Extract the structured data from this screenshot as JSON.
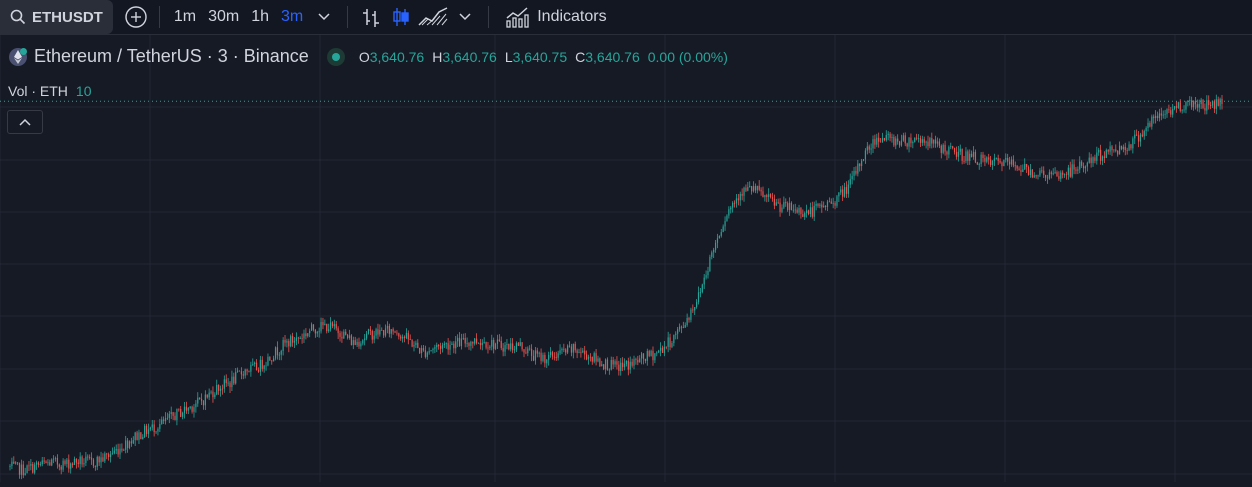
{
  "toolbar": {
    "symbol": "ETHUSDT",
    "intervals": [
      "1m",
      "30m",
      "1h",
      "3m"
    ],
    "active_interval": "3m",
    "indicators_label": "Indicators"
  },
  "legend": {
    "title": "Ethereum / TetherUS · 3 · Binance",
    "open_label": "O",
    "open": "3,640.76",
    "high_label": "H",
    "high": "3,640.76",
    "low_label": "L",
    "low": "3,640.75",
    "close_label": "C",
    "close": "3,640.76",
    "change": "0.00 (0.00%)"
  },
  "volume": {
    "label": "Vol · ETH",
    "value": "10"
  },
  "colors": {
    "up": "#26a69a",
    "down": "#ef5350",
    "accent": "#2962ff",
    "background": "#161a25",
    "grid": "#232734"
  },
  "chart_data": {
    "type": "candlestick",
    "x_label": "",
    "y_label": "",
    "price_line": 3640.76,
    "path_close": [
      3395,
      3393,
      3396,
      3398,
      3397,
      3399,
      3398,
      3402,
      3408,
      3415,
      3420,
      3424,
      3430,
      3435,
      3440,
      3448,
      3452,
      3460,
      3462,
      3470,
      3478,
      3482,
      3488,
      3490,
      3486,
      3478,
      3484,
      3486,
      3487,
      3480,
      3472,
      3476,
      3478,
      3479,
      3480,
      3478,
      3476,
      3477,
      3470,
      3468,
      3472,
      3474,
      3470,
      3465,
      3462,
      3464,
      3468,
      3472,
      3480,
      3492,
      3510,
      3540,
      3565,
      3580,
      3582,
      3575,
      3570,
      3568,
      3566,
      3570,
      3575,
      3585,
      3605,
      3617,
      3615,
      3614,
      3616,
      3612,
      3608,
      3605,
      3603,
      3599,
      3600,
      3598,
      3594,
      3592,
      3590,
      3594,
      3598,
      3604,
      3608,
      3610,
      3618,
      3628,
      3634,
      3638,
      3640,
      3638,
      3641
    ]
  }
}
